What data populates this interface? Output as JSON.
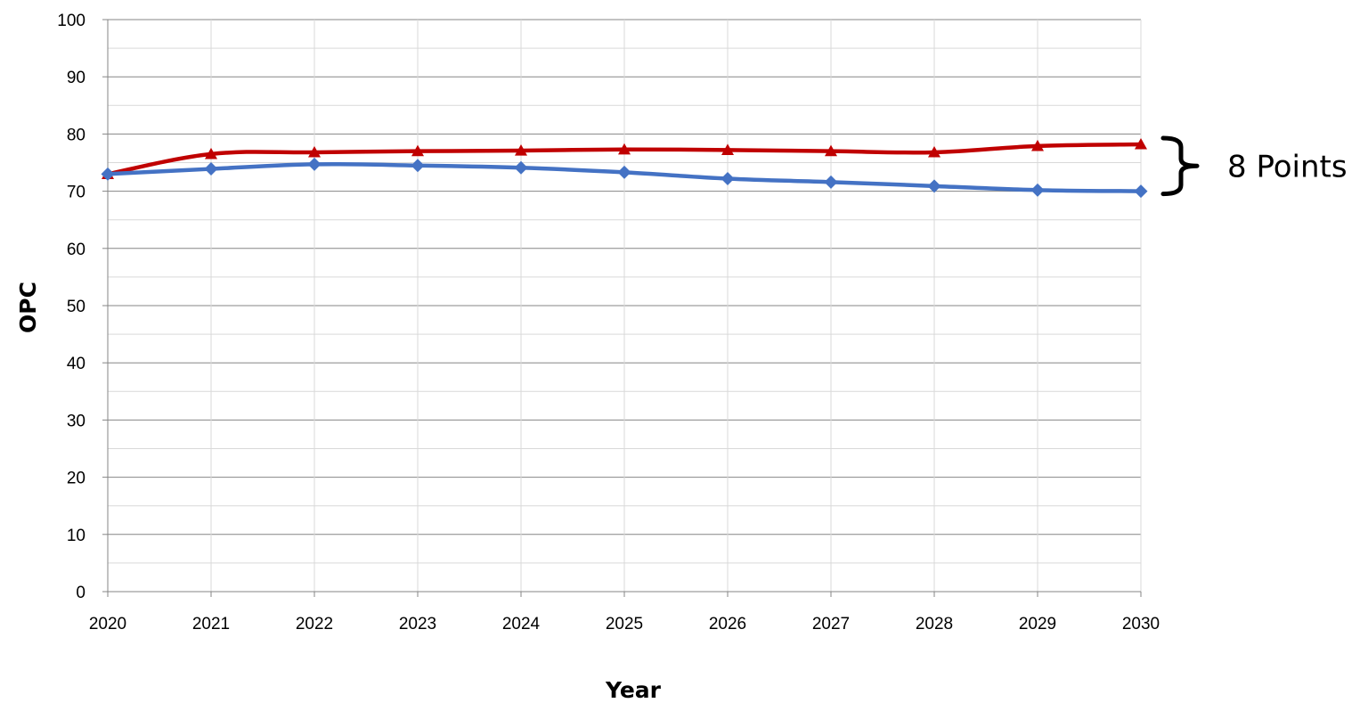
{
  "chart_data": {
    "type": "line",
    "title": "",
    "xlabel": "Year",
    "ylabel": "OPC",
    "x": [
      2020,
      2021,
      2022,
      2023,
      2024,
      2025,
      2026,
      2027,
      2028,
      2029,
      2030
    ],
    "x_tick_labels": [
      "2020",
      "2021",
      "2022",
      "2023",
      "2024",
      "2025",
      "2026",
      "2027",
      "2028",
      "2029",
      "2030"
    ],
    "y_tick_labels": [
      "0",
      "10",
      "20",
      "30",
      "40",
      "50",
      "60",
      "70",
      "80",
      "90",
      "100"
    ],
    "ylim": [
      0,
      100
    ],
    "grid": true,
    "legend": "none",
    "series": [
      {
        "color": "#C00000",
        "marker": "triangle",
        "values": [
          73.0,
          76.5,
          76.8,
          77.0,
          77.1,
          77.3,
          77.2,
          77.0,
          76.8,
          77.9,
          78.2
        ]
      },
      {
        "color": "#4472C4",
        "marker": "diamond",
        "values": [
          73.0,
          73.9,
          74.7,
          74.5,
          74.1,
          73.3,
          72.2,
          71.6,
          70.9,
          70.2,
          70.0
        ]
      }
    ],
    "annotation": {
      "text": "8 Points",
      "from": 70.0,
      "to": 78.2
    }
  }
}
